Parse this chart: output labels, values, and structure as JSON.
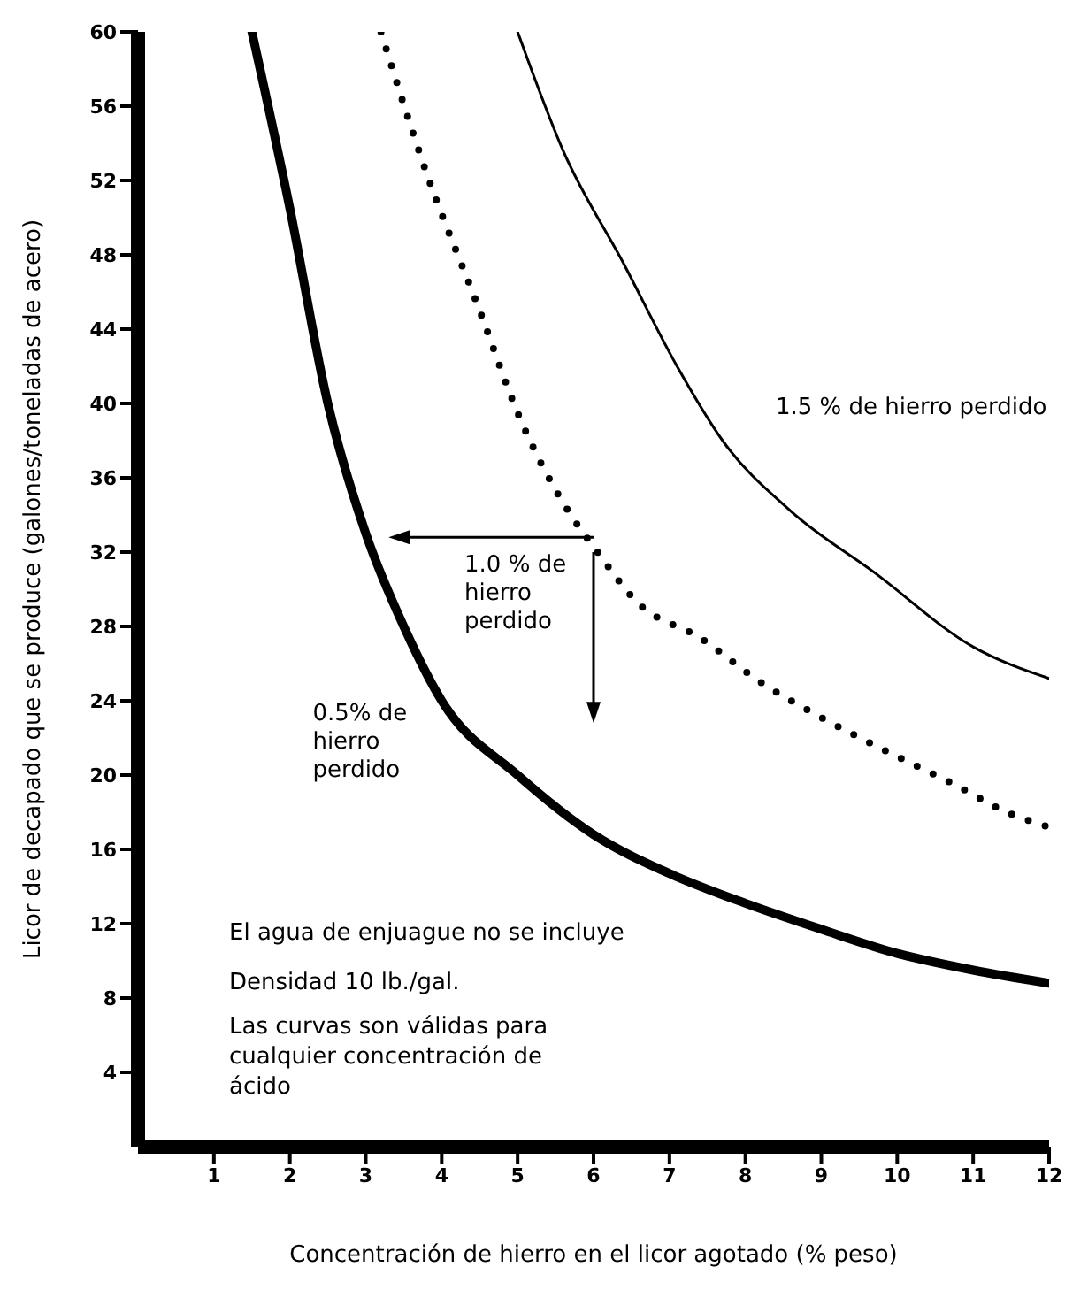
{
  "chart_data": {
    "type": "line",
    "xlabel": "Concentración de hierro en el licor agotado (% peso)",
    "ylabel": "Licor de decapado que se produce (galones/toneladas de acero)",
    "xlim": [
      0,
      12
    ],
    "xticks": [
      1,
      2,
      3,
      4,
      5,
      6,
      7,
      8,
      9,
      10,
      11,
      12
    ],
    "ylim": [
      0,
      60
    ],
    "yticks": [
      4,
      8,
      12,
      16,
      20,
      24,
      28,
      32,
      36,
      40,
      44,
      48,
      52,
      56,
      60
    ],
    "marker": "none",
    "series": [
      {
        "name": "0.5% de hierro perdido",
        "color": "#000000",
        "line_style": "solid",
        "x": [
          1.5,
          2,
          2.5,
          3,
          3.5,
          4,
          5,
          6,
          7,
          8,
          9,
          10,
          11,
          12
        ],
        "values": [
          60,
          50.5,
          40,
          33,
          28,
          24,
          20,
          16.8,
          14.7,
          13.1,
          11.7,
          10.4,
          9.5,
          8.8
        ]
      },
      {
        "name": "1.0 % de hierro perdido",
        "color": "#000000",
        "line_style": "dotted",
        "x": [
          3.2,
          3.8,
          4.5,
          5,
          5.7,
          6,
          6.6,
          7.4,
          8.2,
          9,
          9.8,
          10.7,
          11.5,
          12
        ],
        "values": [
          60,
          52.4,
          45,
          39.5,
          34,
          32.3,
          29.2,
          27.4,
          25,
          23.1,
          21.4,
          19.6,
          17.9,
          17.2
        ]
      },
      {
        "name": "1.5 % de hierro perdido",
        "color": "#000000",
        "line_style": "solid",
        "x": [
          5,
          5.6,
          6.4,
          7.1,
          7.7,
          8.6,
          9.7,
          11,
          12
        ],
        "values": [
          60,
          53.6,
          47.5,
          42,
          38,
          34.2,
          30.9,
          26.9,
          25.2
        ]
      }
    ],
    "annotations": [
      "El agua de enjuague no se incluye",
      "Densidad 10 lb./gal.",
      "Las curvas son válidas para cualquier concentración de ácido"
    ]
  }
}
